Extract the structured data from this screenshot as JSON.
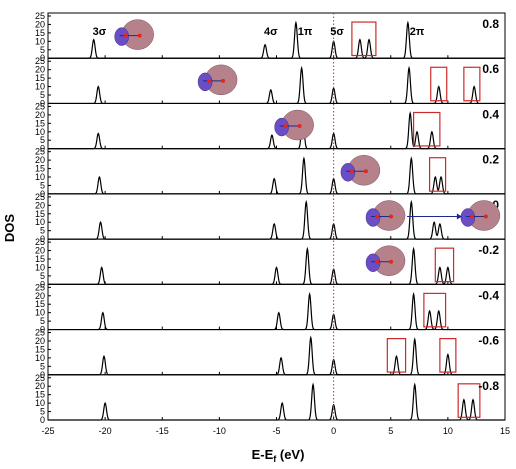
{
  "chart_data": {
    "type": "line",
    "xlabel": "E-E",
    "xlabel_subscript": "f",
    "xlabel_unit": " (eV)",
    "ylabel": "DOS",
    "xlim": [
      -25,
      15
    ],
    "xticks": [
      -25,
      -20,
      -15,
      -10,
      -5,
      0,
      5,
      10,
      15
    ],
    "ylim": [
      0,
      25
    ],
    "yticks": [
      0,
      5,
      10,
      15,
      20,
      25
    ],
    "grid": false,
    "fermi_level": 0,
    "orbital_labels": [
      {
        "text": "3σ",
        "x": -20.5
      },
      {
        "text": "4σ",
        "x": -5.5
      },
      {
        "text": "1π",
        "x": -2.5
      },
      {
        "text": "5σ",
        "x": 0.3
      },
      {
        "text": "2π",
        "x": 7.3
      }
    ],
    "panels": [
      {
        "label": "0.8",
        "peaks": [
          {
            "x": -21.0,
            "h": 11
          },
          {
            "x": -6.0,
            "h": 8
          },
          {
            "x": -3.3,
            "h": 21
          },
          {
            "x": 0.0,
            "h": 10
          },
          {
            "x": 2.3,
            "h": 11
          },
          {
            "x": 3.1,
            "h": 11
          },
          {
            "x": 6.5,
            "h": 21
          }
        ],
        "highlight": [
          {
            "x0": 1.6,
            "x1": 3.7
          }
        ]
      },
      {
        "label": "0.6",
        "peaks": [
          {
            "x": -20.6,
            "h": 10
          },
          {
            "x": -5.5,
            "h": 8
          },
          {
            "x": -2.8,
            "h": 21
          },
          {
            "x": 0.0,
            "h": 9
          },
          {
            "x": 6.6,
            "h": 21
          },
          {
            "x": 9.2,
            "h": 10
          },
          {
            "x": 12.3,
            "h": 10
          }
        ],
        "highlight": [
          {
            "x0": 8.5,
            "x1": 9.9
          },
          {
            "x0": 11.4,
            "x1": 12.8
          }
        ]
      },
      {
        "label": "0.4",
        "peaks": [
          {
            "x": -20.6,
            "h": 9
          },
          {
            "x": -5.4,
            "h": 8
          },
          {
            "x": -2.7,
            "h": 20
          },
          {
            "x": 0.0,
            "h": 9
          },
          {
            "x": 6.7,
            "h": 21
          },
          {
            "x": 7.3,
            "h": 10
          },
          {
            "x": 8.6,
            "h": 10
          }
        ],
        "highlight": [
          {
            "x0": 7.0,
            "x1": 9.3
          }
        ]
      },
      {
        "label": "0.2",
        "peaks": [
          {
            "x": -20.5,
            "h": 10
          },
          {
            "x": -5.2,
            "h": 9
          },
          {
            "x": -2.6,
            "h": 21
          },
          {
            "x": 0.0,
            "h": 9
          },
          {
            "x": 6.8,
            "h": 21
          },
          {
            "x": 8.9,
            "h": 10
          },
          {
            "x": 9.4,
            "h": 10
          }
        ],
        "highlight": [
          {
            "x0": 8.4,
            "x1": 9.8
          }
        ]
      },
      {
        "label": "0.0",
        "peaks": [
          {
            "x": -20.4,
            "h": 10
          },
          {
            "x": -5.2,
            "h": 9
          },
          {
            "x": -2.4,
            "h": 22
          },
          {
            "x": 0.0,
            "h": 9
          },
          {
            "x": 6.8,
            "h": 22
          },
          {
            "x": 8.8,
            "h": 10
          },
          {
            "x": 9.3,
            "h": 9
          }
        ],
        "highlight": []
      },
      {
        "label": "-0.2",
        "peaks": [
          {
            "x": -20.3,
            "h": 10
          },
          {
            "x": -5.0,
            "h": 10
          },
          {
            "x": -2.3,
            "h": 21
          },
          {
            "x": 0.0,
            "h": 9
          },
          {
            "x": 7.0,
            "h": 21
          },
          {
            "x": 9.3,
            "h": 10
          },
          {
            "x": 10.0,
            "h": 10
          }
        ],
        "highlight": [
          {
            "x0": 8.9,
            "x1": 10.5
          }
        ]
      },
      {
        "label": "-0.4",
        "peaks": [
          {
            "x": -20.2,
            "h": 10
          },
          {
            "x": -4.8,
            "h": 10
          },
          {
            "x": -2.1,
            "h": 21
          },
          {
            "x": 0.0,
            "h": 9
          },
          {
            "x": 7.0,
            "h": 21
          },
          {
            "x": 8.4,
            "h": 11
          },
          {
            "x": 9.2,
            "h": 11
          }
        ],
        "highlight": [
          {
            "x0": 7.9,
            "x1": 9.8
          }
        ]
      },
      {
        "label": "-0.6",
        "peaks": [
          {
            "x": -20.1,
            "h": 11
          },
          {
            "x": -4.6,
            "h": 10
          },
          {
            "x": -2.0,
            "h": 22
          },
          {
            "x": 0.0,
            "h": 9
          },
          {
            "x": 5.5,
            "h": 11
          },
          {
            "x": 7.1,
            "h": 21
          },
          {
            "x": 10.0,
            "h": 12
          }
        ],
        "highlight": [
          {
            "x0": 4.7,
            "x1": 6.3
          },
          {
            "x0": 9.3,
            "x1": 10.7
          }
        ]
      },
      {
        "label": "-0.8",
        "peaks": [
          {
            "x": -20.0,
            "h": 10
          },
          {
            "x": -4.5,
            "h": 10
          },
          {
            "x": -1.8,
            "h": 21
          },
          {
            "x": 0.0,
            "h": 9
          },
          {
            "x": 7.1,
            "h": 21
          },
          {
            "x": 11.4,
            "h": 12
          },
          {
            "x": 12.2,
            "h": 12
          }
        ],
        "highlight": [
          {
            "x0": 10.9,
            "x1": 12.8
          }
        ]
      }
    ],
    "orbital_insets": [
      {
        "panel": 0,
        "x": -17.5
      },
      {
        "panel": 1,
        "x": -10.2
      },
      {
        "panel": 2,
        "x": -3.5
      },
      {
        "panel": 3,
        "x": 2.3
      },
      {
        "panel": 4,
        "x": 4.5
      },
      {
        "panel": 4,
        "x": 12.8
      },
      {
        "panel": 5,
        "x": 4.5
      }
    ],
    "colors": {
      "line": "#000000",
      "highlight": "#cc2b2b",
      "fermi": "#c0392b",
      "orbital_outer": "#b5828c",
      "orbital_inner": "#6a4ec6",
      "arrow": "#1c2a8c"
    }
  }
}
